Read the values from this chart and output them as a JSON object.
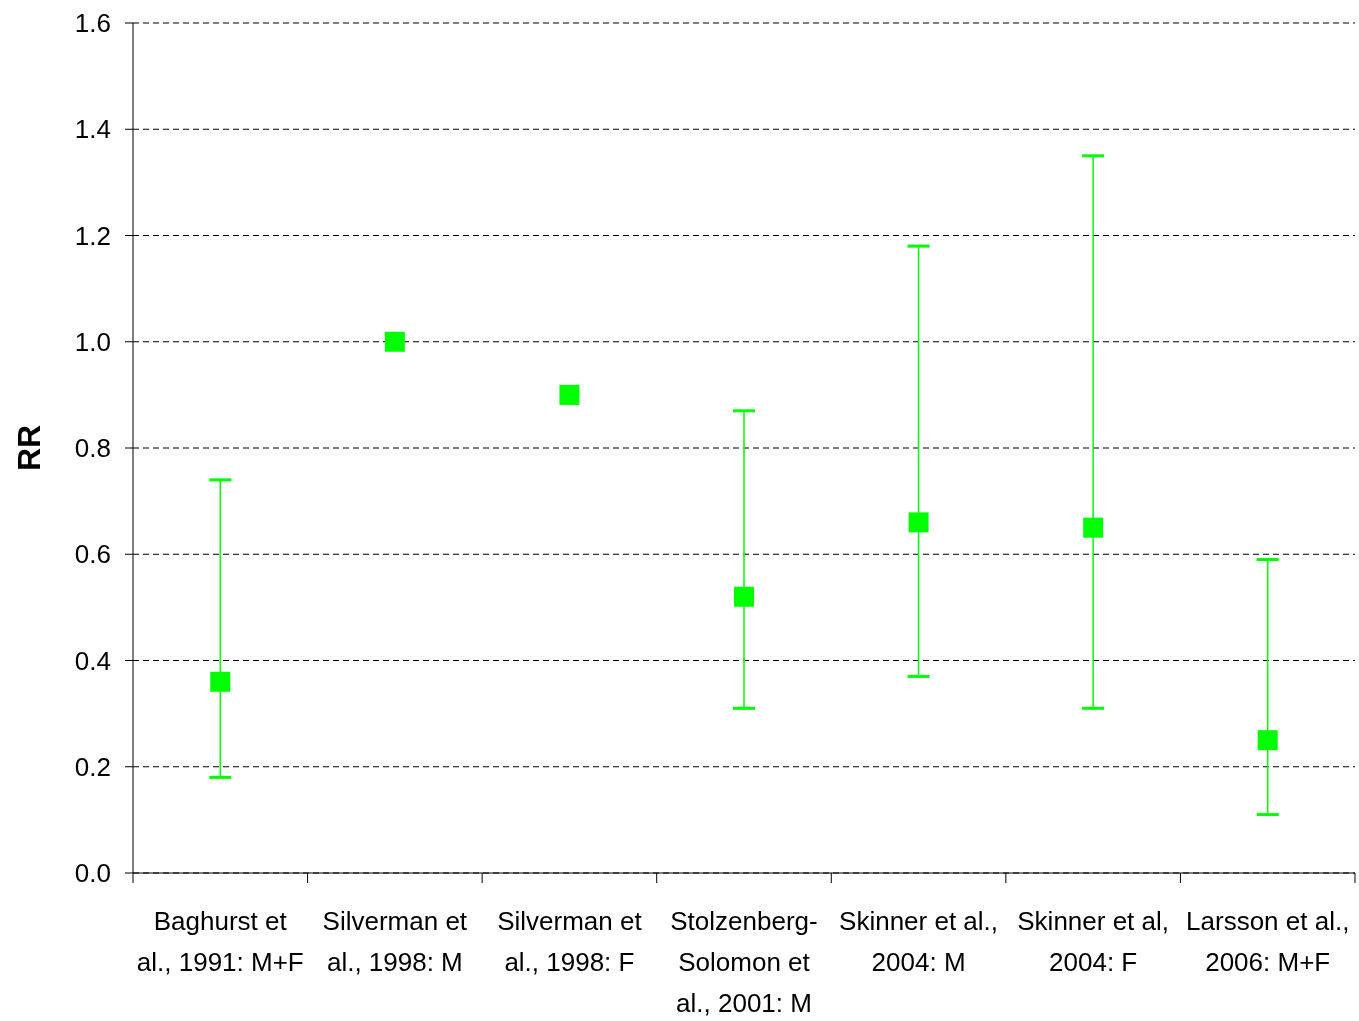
{
  "chart_data": {
    "type": "scatter",
    "ylabel": "RR",
    "categories": [
      "Baghurst et al., 1991: M+F",
      "Silverman et al., 1998: M",
      "Silverman et al., 1998: F",
      "Stolzenberg-Solomon et al., 2001: M",
      "Skinner et al., 2004: M",
      "Skinner et al, 2004: F",
      "Larsson et al., 2006: M+F"
    ],
    "series": [
      {
        "color": "#00ff00",
        "values": [
          0.36,
          1.0,
          0.9,
          0.52,
          0.66,
          0.65,
          0.25
        ],
        "errors": [
          [
            0.18,
            0.74
          ],
          null,
          null,
          [
            0.31,
            0.87
          ],
          [
            0.37,
            1.18
          ],
          [
            0.31,
            1.35
          ],
          [
            0.11,
            0.59
          ]
        ]
      }
    ],
    "ylim": [
      0,
      1.6
    ],
    "yticks": [
      {
        "value": 0,
        "label": "0.0"
      },
      {
        "value": 0.2,
        "label": "0.2"
      },
      {
        "value": 0.4,
        "label": "0.4"
      },
      {
        "value": 0.6,
        "label": "0.6"
      },
      {
        "value": 0.8,
        "label": "0.8"
      },
      {
        "value": 1,
        "label": "1.0"
      },
      {
        "value": 1.2,
        "label": "1.2"
      },
      {
        "value": 1.4,
        "label": "1.4"
      },
      {
        "value": 1.6,
        "label": "1.6"
      }
    ],
    "grid": "y",
    "marker": "square",
    "line_style": "dashed"
  }
}
